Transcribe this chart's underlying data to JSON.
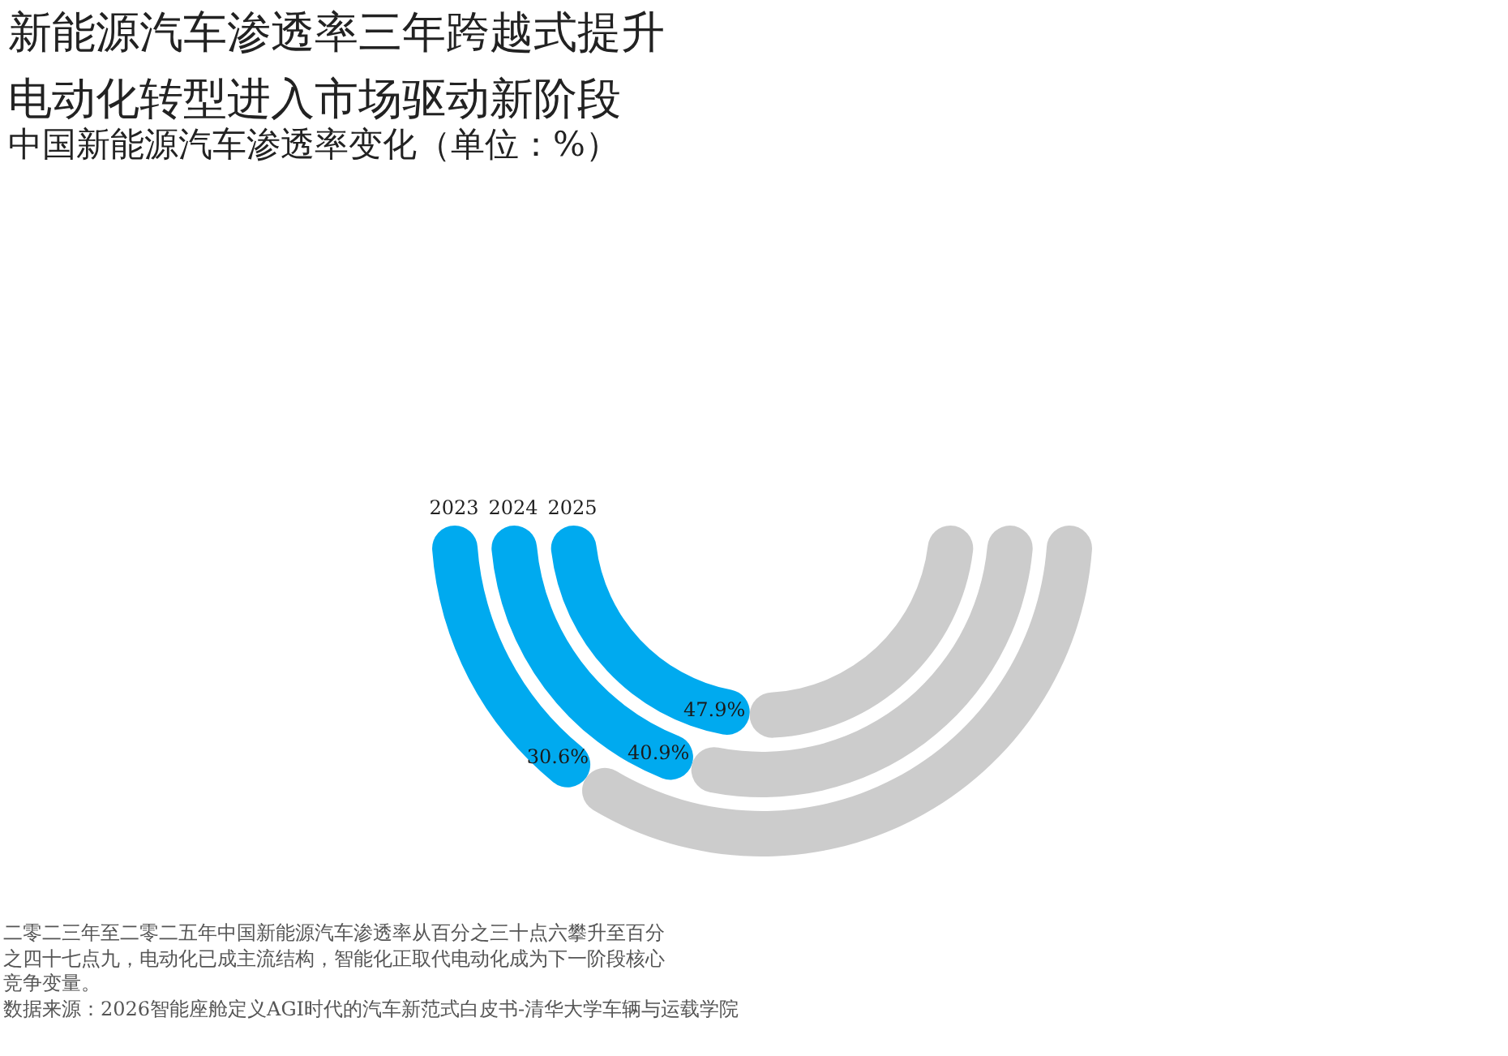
{
  "chart_data": {
    "type": "donut",
    "title": "新能源汽车渗透率三年跨越式提升电动化转型进入市场驱动新阶段",
    "subtitle": "中国新能源汽车渗透率变化（单位：%）",
    "categories": [
      null,
      null
    ],
    "colors": [
      "#00aaef",
      "#cccccc"
    ],
    "series": [
      {
        "name": "2023",
        "values": [
          30.6,
          69.4
        ],
        "value_labels": [
          "30.6%",
          null
        ]
      },
      {
        "name": "2024",
        "values": [
          40.9,
          59.1
        ],
        "value_labels": [
          "40.9%",
          null
        ]
      },
      {
        "name": "2025",
        "values": [
          47.9,
          52.1
        ],
        "value_labels": [
          "47.9%",
          null
        ]
      }
    ],
    "annotations": [
      "二零二三年至二零二五年中国新能源汽车渗透率从百分之三十点六攀升至百分之四十七点九，电动化已成主流结构，智能化正取代电动化成为下一阶段核心竞争变量。",
      "数据来源：2026智能座舱定义AGI时代的汽车新范式白皮书-清华大学车辆与运载学院"
    ]
  }
}
